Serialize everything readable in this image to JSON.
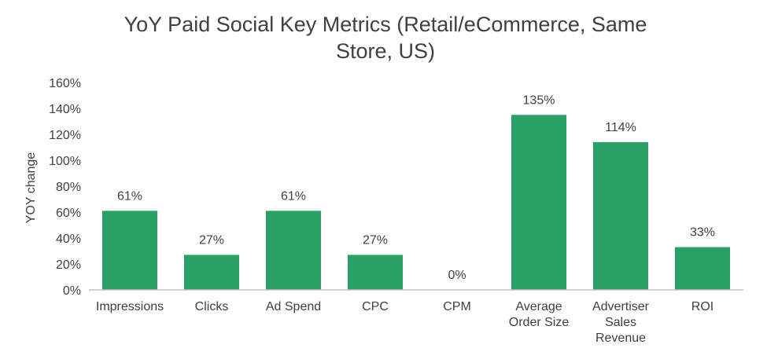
{
  "chart_data": {
    "type": "bar",
    "title": "YoY Paid Social Key Metrics (Retail/eCommerce, Same Store, US)",
    "ylabel": "YOY change",
    "xlabel": "",
    "categories": [
      "Impressions",
      "Clicks",
      "Ad Spend",
      "CPC",
      "CPM",
      "Average Order Size",
      "Advertiser Sales Revenue",
      "ROI"
    ],
    "category_lines": [
      [
        "Impressions"
      ],
      [
        "Clicks"
      ],
      [
        "Ad Spend"
      ],
      [
        "CPC"
      ],
      [
        "CPM"
      ],
      [
        "Average",
        "Order Size"
      ],
      [
        "Advertiser",
        "Sales",
        "Revenue"
      ],
      [
        "ROI"
      ]
    ],
    "values": [
      61,
      27,
      61,
      27,
      0,
      135,
      114,
      33
    ],
    "data_labels": [
      "61%",
      "27%",
      "61%",
      "27%",
      "0%",
      "135%",
      "114%",
      "33%"
    ],
    "unit": "%",
    "ylim": [
      0,
      160
    ],
    "yticks": [
      0,
      20,
      40,
      60,
      80,
      100,
      120,
      140,
      160
    ],
    "ytick_labels": [
      "0%",
      "20%",
      "40%",
      "60%",
      "80%",
      "100%",
      "120%",
      "140%",
      "160%"
    ],
    "grid": false,
    "legend": "none",
    "bar_color": "#2aa065",
    "axis_color": "#bfbfbf",
    "text_color": "#404040"
  }
}
